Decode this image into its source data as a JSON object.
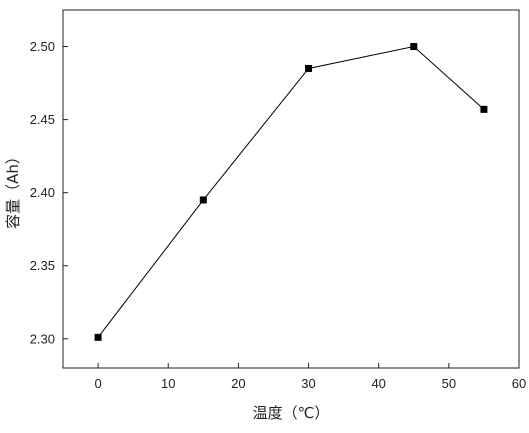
{
  "chart_data": {
    "type": "line",
    "xlabel": "温度（℃）",
    "ylabel": "容量（Ah）",
    "xlim": [
      -5,
      60
    ],
    "ylim": [
      2.28,
      2.525
    ],
    "x_ticks": [
      0,
      10,
      20,
      30,
      40,
      50,
      60
    ],
    "y_ticks": [
      2.3,
      2.35,
      2.4,
      2.45,
      2.5
    ],
    "x_tick_labels": [
      "0",
      "10",
      "20",
      "30",
      "40",
      "50",
      "60"
    ],
    "y_tick_labels": [
      "2.30",
      "2.35",
      "2.40",
      "2.45",
      "2.50"
    ],
    "grid": false,
    "legend": "none",
    "marker": "square",
    "color": "#000000",
    "series": [
      {
        "x": [
          0,
          15,
          30,
          45,
          55
        ],
        "y": [
          2.301,
          2.395,
          2.485,
          2.5,
          2.457
        ]
      }
    ]
  }
}
